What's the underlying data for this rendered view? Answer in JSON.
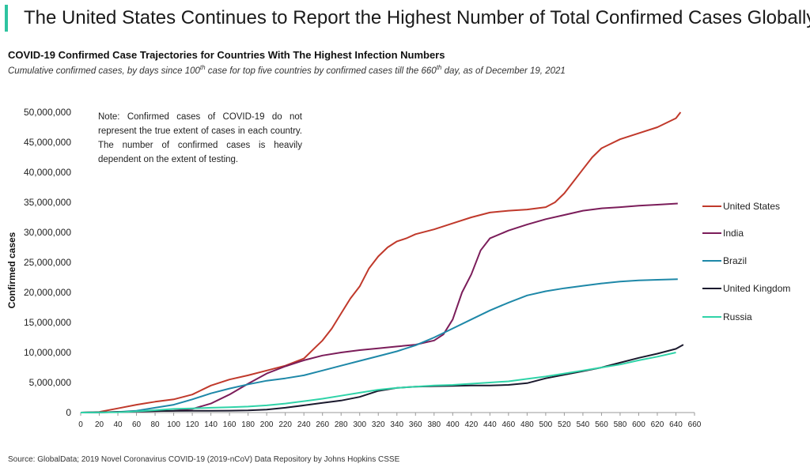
{
  "page": {
    "title": "The United States Continues to Report the Highest Number of Total Confirmed Cases Globally",
    "accent_color": "#2ec4a0"
  },
  "chart_data": {
    "type": "line",
    "title": "COVID-19 Confirmed Case Trajectories for Countries With The Highest Infection Numbers",
    "subtitle_parts": [
      "Cumulative confirmed cases, by days since 100",
      "th",
      " case for top five countries by confirmed cases till the 660",
      "th",
      " day, as of December 19, 2021"
    ],
    "xlabel": "",
    "ylabel": "Confirmed cases",
    "xlim": [
      0,
      660
    ],
    "ylim": [
      0,
      50000000
    ],
    "x_ticks": [
      0,
      20,
      40,
      60,
      80,
      100,
      120,
      140,
      160,
      180,
      200,
      220,
      240,
      260,
      280,
      300,
      320,
      340,
      360,
      380,
      400,
      420,
      440,
      460,
      480,
      500,
      520,
      540,
      560,
      580,
      600,
      620,
      640,
      660
    ],
    "y_ticks": [
      0,
      5000000,
      10000000,
      15000000,
      20000000,
      25000000,
      30000000,
      35000000,
      40000000,
      45000000,
      50000000
    ],
    "y_tick_labels": [
      "0",
      "5,000,000",
      "10,000,000",
      "15,000,000",
      "20,000,000",
      "25,000,000",
      "30,000,000",
      "35,000,000",
      "40,000,000",
      "45,000,000",
      "50,000,000"
    ],
    "grid": false,
    "legend_position": "right",
    "note": "Note: Confirmed cases of COVID-19 do not represent the true extent of cases in each country. The number of confirmed cases is heavily dependent on the extent of testing.",
    "source": "Source: GlobalData; 2019 Novel Coronavirus COVID-19 (2019-nCoV) Data Repository by Johns Hopkins CSSE",
    "series": [
      {
        "name": "United States",
        "color": "#c0392b",
        "points": [
          [
            0,
            0
          ],
          [
            20,
            100000
          ],
          [
            40,
            700000
          ],
          [
            60,
            1300000
          ],
          [
            80,
            1800000
          ],
          [
            100,
            2200000
          ],
          [
            120,
            3000000
          ],
          [
            140,
            4500000
          ],
          [
            160,
            5500000
          ],
          [
            180,
            6200000
          ],
          [
            200,
            7000000
          ],
          [
            220,
            7800000
          ],
          [
            240,
            9000000
          ],
          [
            250,
            10500000
          ],
          [
            260,
            12000000
          ],
          [
            270,
            14000000
          ],
          [
            280,
            16500000
          ],
          [
            290,
            19000000
          ],
          [
            300,
            21000000
          ],
          [
            310,
            24000000
          ],
          [
            320,
            26000000
          ],
          [
            330,
            27500000
          ],
          [
            340,
            28500000
          ],
          [
            350,
            29000000
          ],
          [
            360,
            29700000
          ],
          [
            380,
            30500000
          ],
          [
            400,
            31500000
          ],
          [
            420,
            32500000
          ],
          [
            440,
            33300000
          ],
          [
            460,
            33600000
          ],
          [
            480,
            33800000
          ],
          [
            500,
            34200000
          ],
          [
            510,
            35000000
          ],
          [
            520,
            36500000
          ],
          [
            530,
            38500000
          ],
          [
            540,
            40500000
          ],
          [
            550,
            42500000
          ],
          [
            560,
            44000000
          ],
          [
            580,
            45500000
          ],
          [
            600,
            46500000
          ],
          [
            620,
            47500000
          ],
          [
            640,
            49000000
          ],
          [
            645,
            50000000
          ]
        ]
      },
      {
        "name": "India",
        "color": "#7b1d5a",
        "points": [
          [
            0,
            0
          ],
          [
            20,
            50000
          ],
          [
            40,
            100000
          ],
          [
            60,
            150000
          ],
          [
            80,
            250000
          ],
          [
            100,
            300000
          ],
          [
            120,
            600000
          ],
          [
            140,
            1500000
          ],
          [
            160,
            3000000
          ],
          [
            180,
            4800000
          ],
          [
            200,
            6500000
          ],
          [
            220,
            7700000
          ],
          [
            240,
            8700000
          ],
          [
            260,
            9500000
          ],
          [
            280,
            10000000
          ],
          [
            300,
            10400000
          ],
          [
            320,
            10700000
          ],
          [
            340,
            11000000
          ],
          [
            360,
            11300000
          ],
          [
            380,
            12000000
          ],
          [
            390,
            13000000
          ],
          [
            400,
            15500000
          ],
          [
            410,
            20000000
          ],
          [
            420,
            23000000
          ],
          [
            430,
            27000000
          ],
          [
            440,
            29000000
          ],
          [
            460,
            30300000
          ],
          [
            480,
            31300000
          ],
          [
            500,
            32200000
          ],
          [
            520,
            32900000
          ],
          [
            540,
            33600000
          ],
          [
            560,
            34000000
          ],
          [
            580,
            34200000
          ],
          [
            600,
            34450000
          ],
          [
            620,
            34600000
          ],
          [
            642,
            34800000
          ]
        ]
      },
      {
        "name": "Brazil",
        "color": "#1e88a8",
        "points": [
          [
            0,
            0
          ],
          [
            20,
            30000
          ],
          [
            40,
            100000
          ],
          [
            60,
            300000
          ],
          [
            80,
            800000
          ],
          [
            100,
            1300000
          ],
          [
            120,
            2200000
          ],
          [
            140,
            3200000
          ],
          [
            160,
            4000000
          ],
          [
            180,
            4700000
          ],
          [
            200,
            5300000
          ],
          [
            220,
            5700000
          ],
          [
            240,
            6200000
          ],
          [
            260,
            7000000
          ],
          [
            280,
            7800000
          ],
          [
            300,
            8600000
          ],
          [
            320,
            9400000
          ],
          [
            340,
            10200000
          ],
          [
            360,
            11200000
          ],
          [
            380,
            12500000
          ],
          [
            400,
            14000000
          ],
          [
            420,
            15500000
          ],
          [
            440,
            17000000
          ],
          [
            460,
            18300000
          ],
          [
            480,
            19500000
          ],
          [
            500,
            20200000
          ],
          [
            520,
            20700000
          ],
          [
            540,
            21100000
          ],
          [
            560,
            21500000
          ],
          [
            580,
            21800000
          ],
          [
            600,
            22000000
          ],
          [
            620,
            22100000
          ],
          [
            642,
            22200000
          ]
        ]
      },
      {
        "name": "United Kingdom",
        "color": "#1b1a2e",
        "points": [
          [
            0,
            0
          ],
          [
            20,
            20000
          ],
          [
            40,
            100000
          ],
          [
            60,
            200000
          ],
          [
            80,
            250000
          ],
          [
            100,
            280000
          ],
          [
            120,
            300000
          ],
          [
            140,
            300000
          ],
          [
            160,
            320000
          ],
          [
            180,
            350000
          ],
          [
            200,
            500000
          ],
          [
            220,
            800000
          ],
          [
            240,
            1200000
          ],
          [
            260,
            1600000
          ],
          [
            280,
            2000000
          ],
          [
            300,
            2600000
          ],
          [
            320,
            3600000
          ],
          [
            340,
            4100000
          ],
          [
            360,
            4300000
          ],
          [
            380,
            4400000
          ],
          [
            400,
            4450000
          ],
          [
            420,
            4500000
          ],
          [
            440,
            4500000
          ],
          [
            460,
            4600000
          ],
          [
            480,
            4900000
          ],
          [
            500,
            5700000
          ],
          [
            520,
            6300000
          ],
          [
            540,
            6900000
          ],
          [
            560,
            7500000
          ],
          [
            580,
            8300000
          ],
          [
            600,
            9100000
          ],
          [
            620,
            9800000
          ],
          [
            640,
            10600000
          ],
          [
            648,
            11300000
          ]
        ]
      },
      {
        "name": "Russia",
        "color": "#2fd3a8",
        "points": [
          [
            0,
            0
          ],
          [
            20,
            20000
          ],
          [
            40,
            50000
          ],
          [
            60,
            200000
          ],
          [
            80,
            400000
          ],
          [
            100,
            600000
          ],
          [
            120,
            700000
          ],
          [
            140,
            800000
          ],
          [
            160,
            900000
          ],
          [
            180,
            1000000
          ],
          [
            200,
            1200000
          ],
          [
            220,
            1500000
          ],
          [
            240,
            1900000
          ],
          [
            260,
            2300000
          ],
          [
            280,
            2800000
          ],
          [
            300,
            3300000
          ],
          [
            320,
            3800000
          ],
          [
            340,
            4100000
          ],
          [
            360,
            4300000
          ],
          [
            380,
            4500000
          ],
          [
            400,
            4600000
          ],
          [
            420,
            4800000
          ],
          [
            440,
            5000000
          ],
          [
            460,
            5200000
          ],
          [
            480,
            5600000
          ],
          [
            500,
            6000000
          ],
          [
            520,
            6500000
          ],
          [
            540,
            7000000
          ],
          [
            560,
            7500000
          ],
          [
            580,
            8000000
          ],
          [
            600,
            8700000
          ],
          [
            620,
            9300000
          ],
          [
            640,
            10000000
          ]
        ]
      }
    ]
  }
}
